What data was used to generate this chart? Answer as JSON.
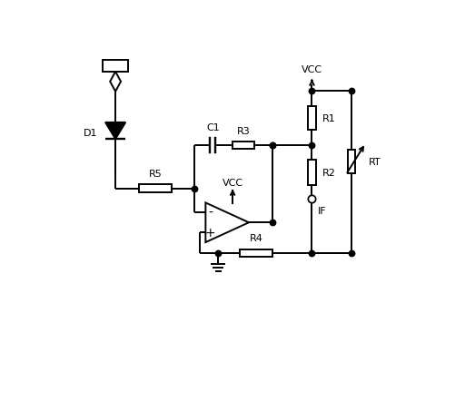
{
  "background_color": "#ffffff",
  "line_color": "#000000",
  "line_width": 1.4,
  "dot_size": 4.5,
  "figsize": [
    5.23,
    4.64
  ],
  "dpi": 100,
  "xlim": [
    0,
    10
  ],
  "ylim": [
    0,
    9
  ]
}
